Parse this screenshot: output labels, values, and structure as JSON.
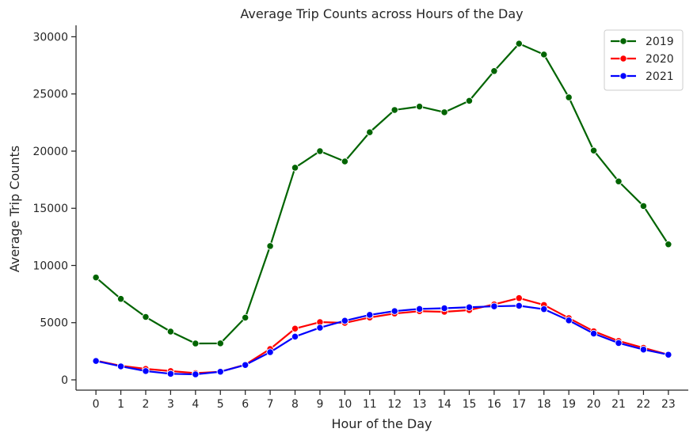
{
  "chart_data": {
    "type": "line",
    "title": "Average Trip Counts across Hours of the Day",
    "xlabel": "Hour of the Day",
    "ylabel": "Average Trip Counts",
    "x": [
      0,
      1,
      2,
      3,
      4,
      5,
      6,
      7,
      8,
      9,
      10,
      11,
      12,
      13,
      14,
      15,
      16,
      17,
      18,
      19,
      20,
      21,
      22,
      23
    ],
    "x_tick_labels": [
      "0",
      "1",
      "2",
      "3",
      "4",
      "5",
      "6",
      "7",
      "8",
      "9",
      "10",
      "11",
      "12",
      "13",
      "14",
      "15",
      "16",
      "17",
      "18",
      "19",
      "20",
      "21",
      "22",
      "23"
    ],
    "y_ticks": [
      0,
      5000,
      10000,
      15000,
      20000,
      25000,
      30000
    ],
    "y_tick_labels": [
      "0",
      "5000",
      "10000",
      "15000",
      "20000",
      "25000",
      "30000"
    ],
    "ylim": [
      -900,
      31000
    ],
    "xlim": [
      -0.8,
      23.8
    ],
    "grid": false,
    "legend_position": "top-right",
    "marker": "circle",
    "series": [
      {
        "name": "2019",
        "color": "#006400",
        "values": [
          8950,
          7080,
          5500,
          4220,
          3180,
          3190,
          5440,
          11700,
          18550,
          20000,
          19100,
          21650,
          23600,
          23900,
          23400,
          24400,
          27000,
          29400,
          28450,
          24700,
          20050,
          17350,
          15200,
          11850
        ]
      },
      {
        "name": "2020",
        "color": "#ff0000",
        "values": [
          1680,
          1230,
          960,
          770,
          590,
          710,
          1330,
          2700,
          4480,
          5050,
          4980,
          5450,
          5800,
          6000,
          5950,
          6100,
          6600,
          7150,
          6550,
          5400,
          4250,
          3400,
          2800,
          2200
        ]
      },
      {
        "name": "2021",
        "color": "#0000ff",
        "values": [
          1650,
          1180,
          770,
          530,
          480,
          710,
          1300,
          2420,
          3780,
          4560,
          5170,
          5680,
          6010,
          6200,
          6260,
          6350,
          6430,
          6480,
          6180,
          5200,
          4050,
          3220,
          2650,
          2200
        ]
      }
    ]
  }
}
